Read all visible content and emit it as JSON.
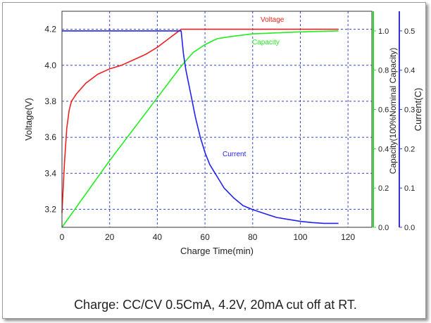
{
  "chart_data": {
    "type": "line",
    "xlabel": "Charge Time(min)",
    "x_ticks": [
      0,
      20,
      40,
      60,
      80,
      100,
      120
    ],
    "xlim": [
      0,
      130
    ],
    "y_left": {
      "label": "Voltage(V)",
      "ticks": [
        "3.2",
        "3.4",
        "3.6",
        "3.8",
        "4.0",
        "4.2"
      ],
      "lim": [
        3.1,
        4.3
      ],
      "color": "#222222"
    },
    "y_capacity": {
      "label": "Capacity(100%Nominal Capacity)",
      "ticks": [
        "0.0",
        "0.2",
        "0.4",
        "0.6",
        "0.8",
        "1.0"
      ],
      "lim": [
        0,
        1.1
      ],
      "color": "#22dd22"
    },
    "y_current": {
      "label": "Current(C)",
      "ticks": [
        "0.0",
        "0.1",
        "0.2",
        "0.3",
        "0.4",
        "0.5"
      ],
      "lim": [
        0,
        0.55
      ],
      "color": "#3333dd"
    },
    "grid": true,
    "series": [
      {
        "name": "Voltage",
        "axis": "voltage",
        "color": "#ee2222",
        "points": [
          [
            0,
            3.18
          ],
          [
            1,
            3.45
          ],
          [
            2,
            3.65
          ],
          [
            3,
            3.75
          ],
          [
            4,
            3.8
          ],
          [
            6,
            3.84
          ],
          [
            10,
            3.9
          ],
          [
            15,
            3.95
          ],
          [
            20,
            3.98
          ],
          [
            25,
            4.0
          ],
          [
            30,
            4.03
          ],
          [
            35,
            4.06
          ],
          [
            40,
            4.1
          ],
          [
            45,
            4.15
          ],
          [
            48,
            4.18
          ],
          [
            50,
            4.2
          ],
          [
            60,
            4.2
          ],
          [
            80,
            4.2
          ],
          [
            100,
            4.2
          ],
          [
            116,
            4.2
          ]
        ]
      },
      {
        "name": "Capacity",
        "axis": "capacity",
        "color": "#22ee22",
        "points": [
          [
            0,
            0.0
          ],
          [
            10,
            0.17
          ],
          [
            20,
            0.34
          ],
          [
            30,
            0.5
          ],
          [
            40,
            0.66
          ],
          [
            50,
            0.82
          ],
          [
            55,
            0.89
          ],
          [
            60,
            0.93
          ],
          [
            65,
            0.96
          ],
          [
            70,
            0.97
          ],
          [
            80,
            0.985
          ],
          [
            90,
            0.99
          ],
          [
            100,
            0.995
          ],
          [
            116,
            1.0
          ]
        ]
      },
      {
        "name": "Current",
        "axis": "current",
        "color": "#2222ee",
        "points": [
          [
            0,
            0.5
          ],
          [
            50,
            0.5
          ],
          [
            51,
            0.44
          ],
          [
            52,
            0.4
          ],
          [
            54,
            0.34
          ],
          [
            56,
            0.28
          ],
          [
            58,
            0.23
          ],
          [
            60,
            0.19
          ],
          [
            62,
            0.16
          ],
          [
            64,
            0.14
          ],
          [
            66,
            0.12
          ],
          [
            68,
            0.1
          ],
          [
            72,
            0.075
          ],
          [
            76,
            0.055
          ],
          [
            80,
            0.045
          ],
          [
            85,
            0.035
          ],
          [
            90,
            0.025
          ],
          [
            95,
            0.02
          ],
          [
            100,
            0.015
          ],
          [
            105,
            0.012
          ],
          [
            110,
            0.01
          ],
          [
            116,
            0.01
          ]
        ]
      }
    ]
  },
  "caption": "Charge: CC/CV 0.5CmA, 4.2V, 20mA cut off at RT."
}
